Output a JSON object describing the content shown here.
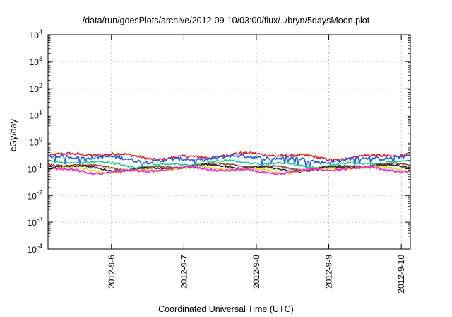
{
  "chart_data": {
    "type": "line",
    "title": "/data/run/goesPlots/archive/2012-09-10/03:00/flux/../bryn/5daysMoon.plot",
    "xlabel": "Coordinated Universal Time (UTC)",
    "ylabel": "cGy/day",
    "yscale": "log",
    "ylim": [
      0.0001,
      10000
    ],
    "y_ticks": [
      {
        "base": "10",
        "exp": "-4"
      },
      {
        "base": "10",
        "exp": "-3"
      },
      {
        "base": "10",
        "exp": "-2"
      },
      {
        "base": "10",
        "exp": "-1"
      },
      {
        "base": "10",
        "exp": "0"
      },
      {
        "base": "10",
        "exp": "1"
      },
      {
        "base": "10",
        "exp": "2"
      },
      {
        "base": "10",
        "exp": "3"
      },
      {
        "base": "10",
        "exp": "4"
      }
    ],
    "xlim": [
      "2012-09-05 03:00",
      "2012-09-10 03:00"
    ],
    "x_ticks": [
      "2012-9-6",
      "2012-9-7",
      "2012-9-8",
      "2012-9-9",
      "2012-9-10"
    ],
    "x_tick_dates": [
      "2012-09-06",
      "2012-09-07",
      "2012-09-08",
      "2012-09-09",
      "2012-09-10"
    ],
    "grid": true,
    "series": [
      {
        "color": "#e0191e",
        "base": 0.3,
        "amplitude": 0.12,
        "dips": false
      },
      {
        "color": "#1e5fe8",
        "base": 0.24,
        "amplitude": 0.15,
        "dips": true
      },
      {
        "color": "#1ec98c",
        "base": 0.155,
        "amplitude": 0.08,
        "dips": false
      },
      {
        "color": "#8a4a2a",
        "base": 0.12,
        "amplitude": 0.08,
        "dips": false
      },
      {
        "color": "#2a2a2a",
        "base": 0.11,
        "amplitude": 0.07,
        "dips": false
      },
      {
        "color": "#e8d21e",
        "base": 0.095,
        "amplitude": 0.08,
        "dips": false
      },
      {
        "color": "#ee22dd",
        "base": 0.088,
        "amplitude": 0.1,
        "dips": false
      }
    ]
  }
}
